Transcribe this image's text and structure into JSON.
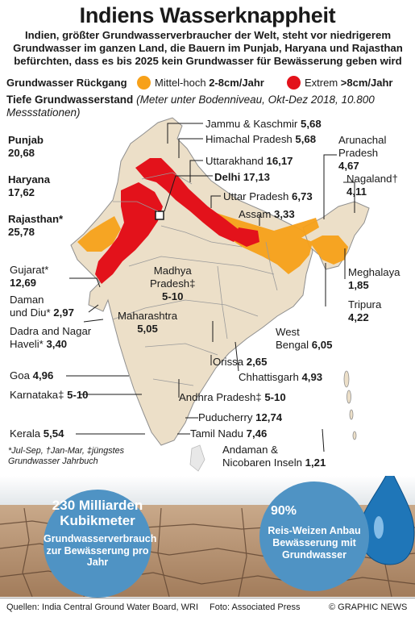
{
  "title": "Indiens Wasserknappheit",
  "subtitle": "Indien, größter Grundwasserverbraucher der Welt, steht vor niedrigerem Grundwasser im ganzen Land, die Bauern im Punjab, Haryana und Rajasthan befürchten, dass es bis 2025 kein Grundwasser für Bewässerung geben wird",
  "legend": {
    "title": "Grundwasser Rückgang",
    "items": [
      {
        "label": "Mittel-hoch",
        "value": "2-8cm/Jahr",
        "color": "#f7a11a"
      },
      {
        "label": "Extrem",
        "value": ">8cm/Jahr",
        "color": "#e3121b"
      }
    ]
  },
  "depth": {
    "title": "Tiefe Grundwasserstand",
    "note": "(Meter unter Bodenniveau, Okt-Dez 2018, 10.800 Messstationen)"
  },
  "states": {
    "jk": {
      "name": "Jammu & Kaschmir",
      "value": "5,68"
    },
    "hp": {
      "name": "Himachal Pradesh",
      "value": "5,68"
    },
    "punjab": {
      "name": "Punjab",
      "value": "20,68"
    },
    "uk": {
      "name": "Uttarakhand",
      "value": "16,17"
    },
    "arunachal": {
      "name": "Arunachal Pradesh",
      "value": "4,67"
    },
    "haryana": {
      "name": "Haryana",
      "value": "17,62"
    },
    "delhi": {
      "name": "Delhi",
      "value": "17,13"
    },
    "nagaland": {
      "name": "Nagaland†",
      "value": "4,11"
    },
    "up": {
      "name": "Uttar Pradesh",
      "value": "6,73"
    },
    "rajasthan": {
      "name": "Rajasthan*",
      "value": "25,78"
    },
    "assam": {
      "name": "Assam",
      "value": "3,33"
    },
    "gujarat": {
      "name": "Gujarat*",
      "value": "12,69"
    },
    "mp": {
      "name": "Madhya Pradesh‡",
      "value": "5-10"
    },
    "meghalaya": {
      "name": "Meghalaya",
      "value": "1,85"
    },
    "daman": {
      "name": "Daman und Diu*",
      "value": "2,97"
    },
    "tripura": {
      "name": "Tripura",
      "value": "4,22"
    },
    "maharashtra": {
      "name": "Maharashtra",
      "value": "5,05"
    },
    "dadra": {
      "name": "Dadra and Nagar Haveli*",
      "value": "3,40"
    },
    "wb": {
      "name": "West Bengal",
      "value": "6,05"
    },
    "odisha": {
      "name": "Orissa",
      "value": "2,65"
    },
    "goa": {
      "name": "Goa",
      "value": "4,96"
    },
    "chhattisgarh": {
      "name": "Chhattisgarh",
      "value": "4,93"
    },
    "karnataka": {
      "name": "Karnataka‡",
      "value": "5-10"
    },
    "ap": {
      "name": "Andhra Pradesh‡",
      "value": "5-10"
    },
    "puducherry": {
      "name": "Puducherry",
      "value": "12,74"
    },
    "kerala": {
      "name": "Kerala",
      "value": "5,54"
    },
    "tn": {
      "name": "Tamil Nadu",
      "value": "7,46"
    },
    "andaman": {
      "name": "Andaman & Nicobaren Inseln",
      "value": "1,21"
    }
  },
  "footnote": "*Jul-Sep, †Jan-Mar, ‡jüngstes Grundwasser Jahrbuch",
  "callouts": {
    "left": {
      "big": "230 Milliarden Kubikmeter",
      "small": "Grundwasserverbrauch zur Bewässerung pro Jahr"
    },
    "right": {
      "big": "90%",
      "small": "Reis-Weizen Anbau Bewässerung mit Grundwasser"
    }
  },
  "footer": {
    "sources": "Quellen: India Central Ground Water Board, WRI",
    "photo": "Foto: Associated Press",
    "credit": "© GRAPHIC NEWS"
  },
  "colors": {
    "land": "#ecdfc8",
    "border": "#8f8f8f",
    "orange": "#f7a11a",
    "red": "#e3121b",
    "water": "#4f93c4"
  }
}
